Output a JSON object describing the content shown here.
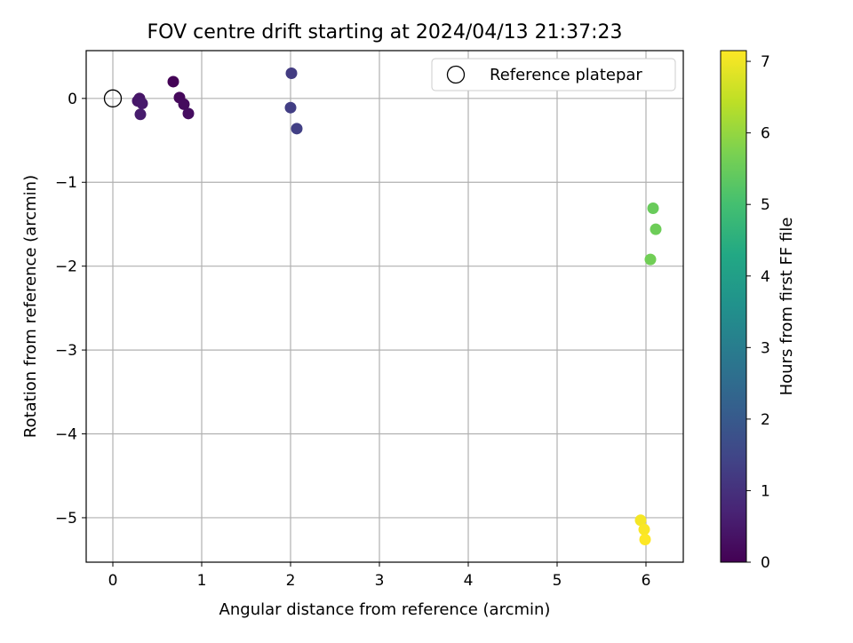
{
  "chart_data": {
    "type": "scatter",
    "title": "FOV centre drift starting at 2024/04/13 21:37:23",
    "xlabel": "Angular distance from reference (arcmin)",
    "ylabel": "Rotation from reference (arcmin)",
    "xlim": [
      -0.3,
      6.42
    ],
    "ylim": [
      -5.53,
      0.57
    ],
    "xticks": [
      0,
      1,
      2,
      3,
      4,
      5,
      6
    ],
    "yticks": [
      0,
      -1,
      -2,
      -3,
      -4,
      -5
    ],
    "xtick_labels": [
      "0",
      "1",
      "2",
      "3",
      "4",
      "5",
      "6"
    ],
    "ytick_labels": [
      "0",
      "−1",
      "−2",
      "−3",
      "−4",
      "−5"
    ],
    "grid": true,
    "legend": {
      "position": "top-right",
      "label": "Reference platepar"
    },
    "reference_point": {
      "x": 0,
      "y": 0
    },
    "colorbar": {
      "label": "Hours from first FF file",
      "min": 0,
      "max": 7.15,
      "ticks": [
        0,
        1,
        2,
        3,
        4,
        5,
        6,
        7
      ],
      "tick_labels": [
        "0",
        "1",
        "2",
        "3",
        "4",
        "5",
        "6",
        "7"
      ],
      "colormap": "viridis"
    },
    "points": [
      {
        "x": 0.68,
        "y": 0.2,
        "c": 0.05
      },
      {
        "x": 0.75,
        "y": 0.01,
        "c": 0.15
      },
      {
        "x": 0.8,
        "y": -0.07,
        "c": 0.2
      },
      {
        "x": 0.85,
        "y": -0.18,
        "c": 0.25
      },
      {
        "x": 0.3,
        "y": 0.0,
        "c": 0.4
      },
      {
        "x": 0.28,
        "y": -0.03,
        "c": 0.45
      },
      {
        "x": 0.33,
        "y": -0.06,
        "c": 0.5
      },
      {
        "x": 0.31,
        "y": -0.19,
        "c": 0.55
      },
      {
        "x": 2.01,
        "y": 0.3,
        "c": 1.25
      },
      {
        "x": 2.0,
        "y": -0.11,
        "c": 1.3
      },
      {
        "x": 2.07,
        "y": -0.36,
        "c": 1.35
      },
      {
        "x": 6.08,
        "y": -1.31,
        "c": 5.5
      },
      {
        "x": 6.11,
        "y": -1.56,
        "c": 5.55
      },
      {
        "x": 6.05,
        "y": -1.92,
        "c": 5.6
      },
      {
        "x": 5.94,
        "y": -5.03,
        "c": 7.05
      },
      {
        "x": 5.98,
        "y": -5.14,
        "c": 7.1
      },
      {
        "x": 5.99,
        "y": -5.26,
        "c": 7.15
      }
    ]
  }
}
